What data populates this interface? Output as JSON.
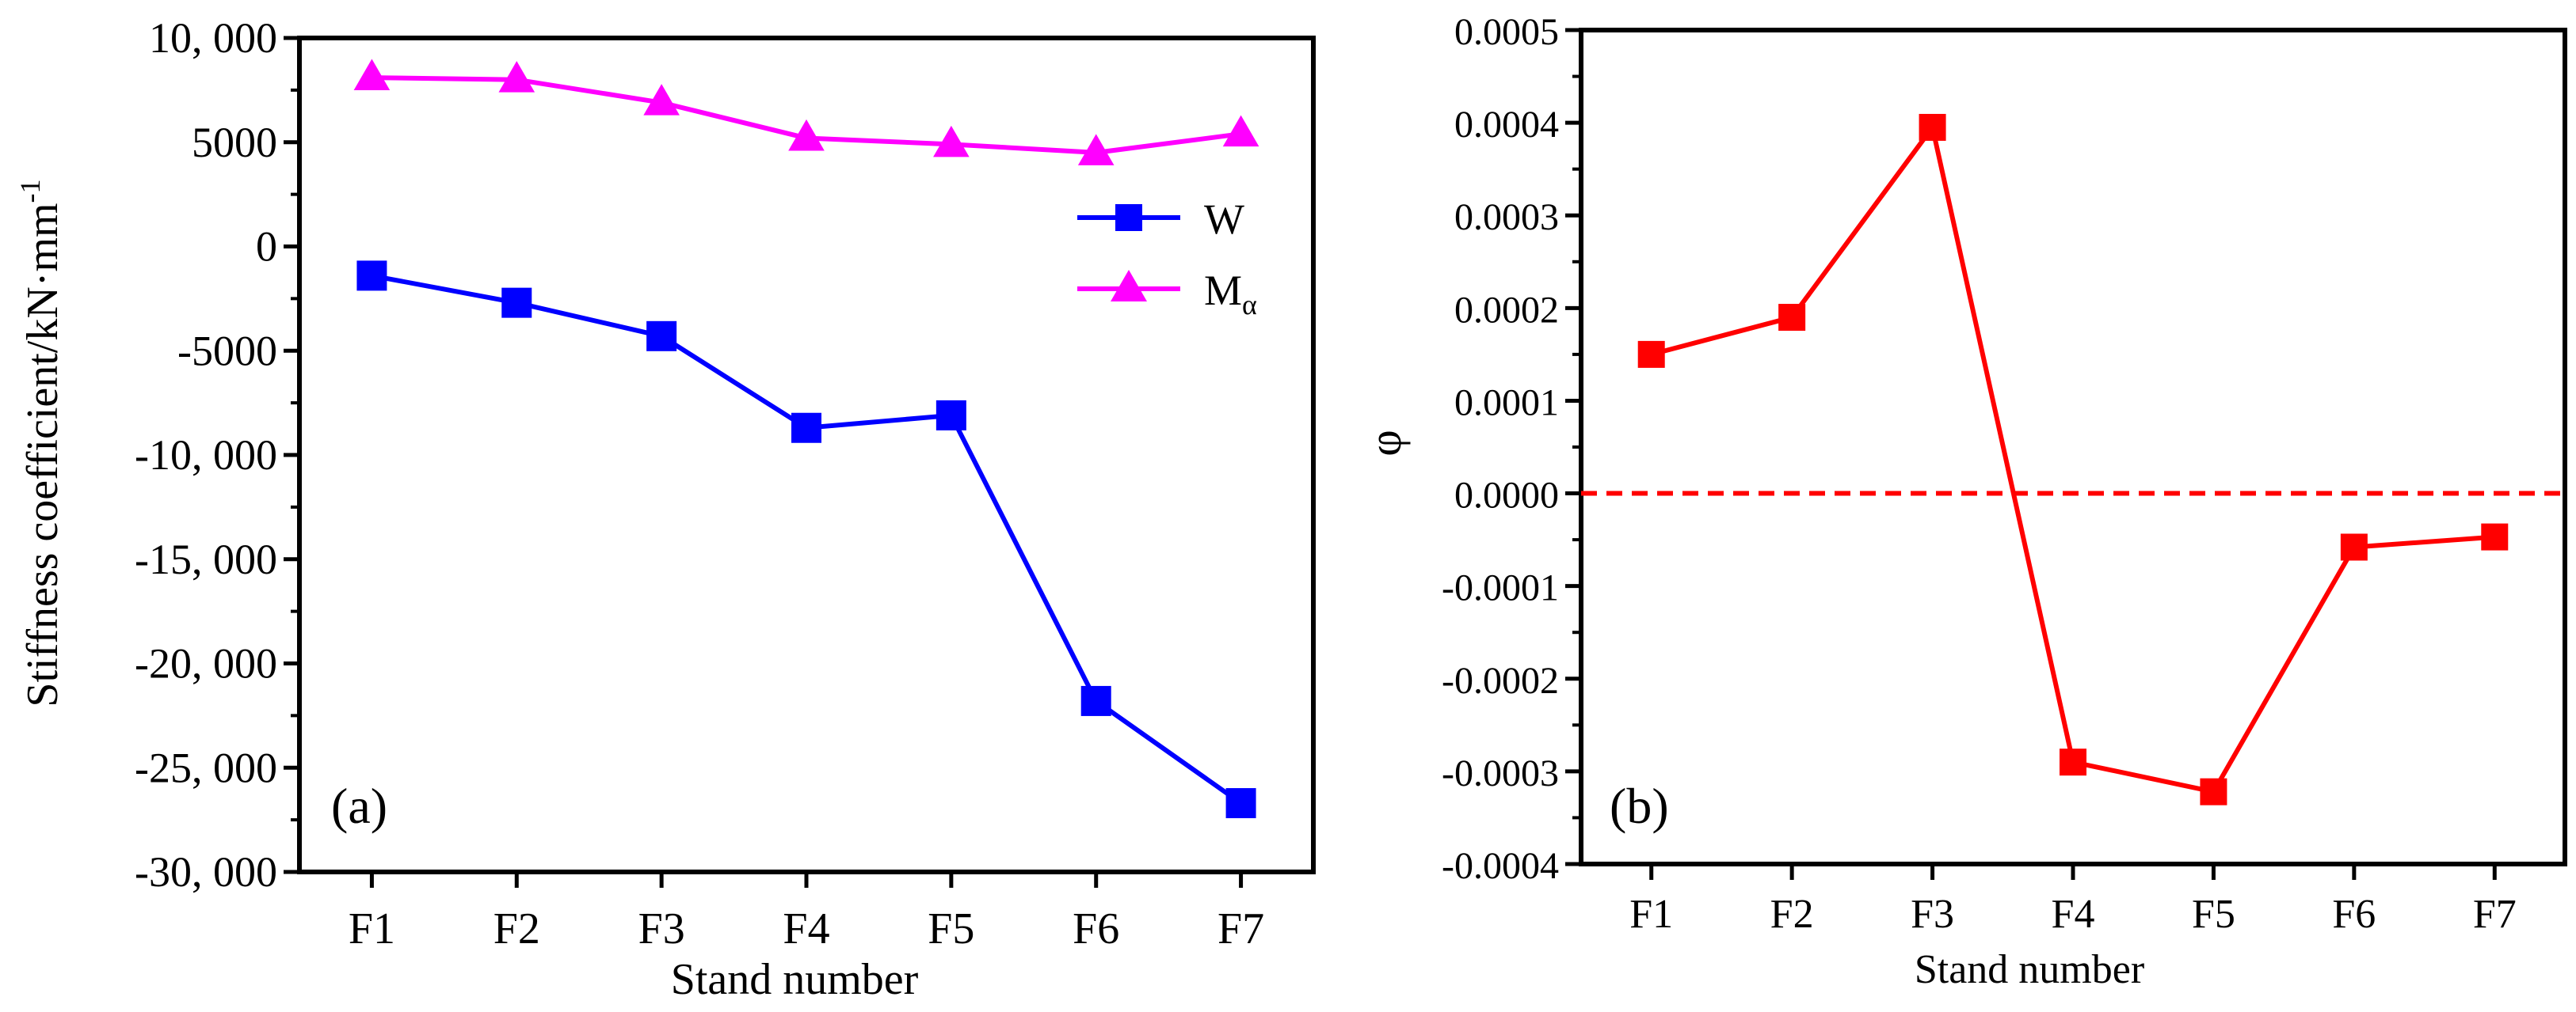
{
  "chart_data": [
    {
      "type": "line",
      "panel_label": "(a)",
      "xlabel": "Stand number",
      "ylabel_main": "Stiffness coefficient/kN·mm",
      "ylabel_sup": "-1",
      "categories": [
        "F1",
        "F2",
        "F3",
        "F4",
        "F5",
        "F6",
        "F7"
      ],
      "ylim": [
        -30000,
        10000
      ],
      "yticks": [
        10000,
        5000,
        0,
        -5000,
        -10000,
        -15000,
        -20000,
        -25000,
        -30000
      ],
      "ytick_labels": [
        "10, 000",
        "5000",
        "0",
        "-5000",
        "-10, 000",
        "-15, 000",
        "-20, 000",
        "-25, 000",
        "-30, 000"
      ],
      "legend_position": "upper-right",
      "series": [
        {
          "name": "W",
          "legend_label": "W",
          "legend_sub": "",
          "color": "#0000FF",
          "marker": "square",
          "values": [
            -1400,
            -2700,
            -4300,
            -8700,
            -8100,
            -21800,
            -26700
          ]
        },
        {
          "name": "Mα",
          "legend_label": "M",
          "legend_sub": "α",
          "color": "#FF00FF",
          "marker": "triangle",
          "values": [
            8100,
            8000,
            6900,
            5200,
            4900,
            4500,
            5400
          ]
        }
      ]
    },
    {
      "type": "line",
      "panel_label": "(b)",
      "xlabel": "Stand number",
      "ylabel": "φ",
      "categories": [
        "F1",
        "F2",
        "F3",
        "F4",
        "F5",
        "F6",
        "F7"
      ],
      "ylim": [
        -0.0004,
        0.0005
      ],
      "yticks": [
        0.0005,
        0.0004,
        0.0003,
        0.0002,
        0.0001,
        0,
        -0.0001,
        -0.0002,
        -0.0003,
        -0.0004
      ],
      "ytick_labels": [
        "0.0005",
        "0.0004",
        "0.0003",
        "0.0002",
        "0.0001",
        "0.0000",
        "-0.0001",
        "-0.0002",
        "-0.0003",
        "-0.0004"
      ],
      "reference_line": {
        "y": 0,
        "style": "dashed",
        "color": "#FF0000"
      },
      "series": [
        {
          "name": "φ",
          "color": "#FF0000",
          "marker": "square",
          "values": [
            0.00015,
            0.00019,
            0.000395,
            -0.00029,
            -0.000322,
            -5.8e-05,
            -4.7e-05
          ]
        }
      ]
    }
  ]
}
